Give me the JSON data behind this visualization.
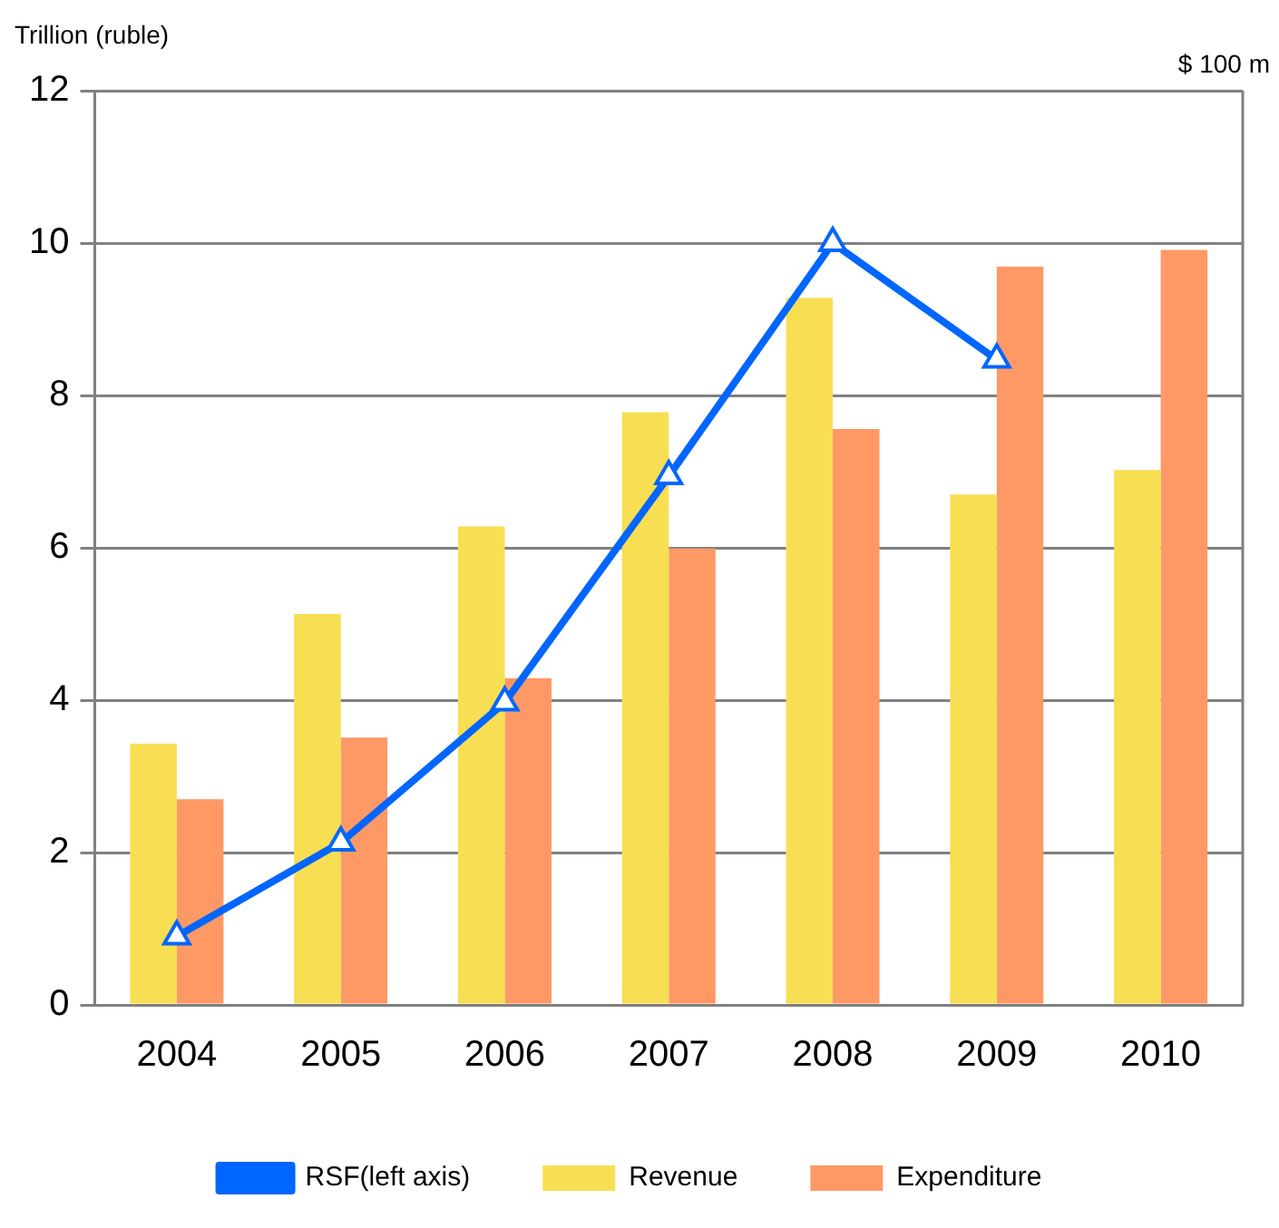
{
  "chart_data": {
    "type": "bar",
    "ylabel": "Trillion (ruble)",
    "annotations": [
      "$ 100 m"
    ],
    "categories": [
      "2004",
      "2005",
      "2006",
      "2007",
      "2008",
      "2009",
      "2010"
    ],
    "series": [
      {
        "name": "Revenue",
        "color": "#f8de52",
        "values": [
          3.43,
          5.13,
          6.28,
          7.78,
          9.28,
          6.7,
          7.02
        ]
      },
      {
        "name": "Expenditure",
        "color": "#fe9966",
        "values": [
          2.7,
          3.51,
          4.29,
          5.99,
          7.56,
          9.69,
          9.91
        ]
      },
      {
        "name": "RSF(left axis)",
        "type": "line",
        "color": "#0066ff",
        "marker": "triangle",
        "values": [
          0.9,
          2.13,
          3.97,
          6.94,
          10.0,
          8.47,
          null
        ]
      }
    ],
    "ylim": [
      0,
      12
    ],
    "yticks": [
      0,
      2,
      4,
      6,
      8,
      10,
      12
    ],
    "grid": "y",
    "legend": "bottom"
  }
}
